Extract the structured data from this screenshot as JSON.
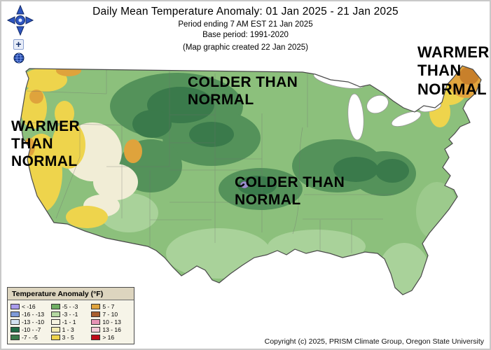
{
  "header": {
    "title": "Daily Mean Temperature Anomaly: 01 Jan 2025 - 21 Jan 2025",
    "period_line": "Period ending 7 AM EST 21 Jan 2025",
    "base_period_line": "Base period: 1991-2020",
    "created_line": "(Map graphic created 22 Jan 2025)"
  },
  "map_controls": {
    "pan_icon": "compass-rose-icon",
    "zoom_in_label": "+",
    "globe_icon": "globe-icon"
  },
  "annotations": [
    {
      "id": "west",
      "text": "WARMER\nTHAN\nNORMAL"
    },
    {
      "id": "north-central",
      "text": "COLDER THAN\nNORMAL"
    },
    {
      "id": "central",
      "text": "COLDER THAN\nNORMAL"
    },
    {
      "id": "northeast",
      "text": "WARMER\nTHAN\nNORMAL"
    }
  ],
  "legend": {
    "title": "Temperature Anomaly (°F)",
    "columns": [
      {
        "items": [
          {
            "range": "< -16",
            "color": "#a99cec"
          },
          {
            "range": "-16 - -13",
            "color": "#7f9bd8"
          },
          {
            "range": "-13 - -10",
            "color": "#d4e2f2"
          },
          {
            "range": "-10 - -7",
            "color": "#1f6b46"
          },
          {
            "range": "-7 - -5",
            "color": "#3a7a4b"
          }
        ]
      },
      {
        "items": [
          {
            "range": "-5 - -3",
            "color": "#6fae62"
          },
          {
            "range": "-3 - -1",
            "color": "#b4d9a2"
          },
          {
            "range": "-1 - 1",
            "color": "#f7f4e1"
          },
          {
            "range": "1 - 3",
            "color": "#f3ecb2"
          },
          {
            "range": "3 - 5",
            "color": "#eed44c"
          }
        ]
      },
      {
        "items": [
          {
            "range": "5 - 7",
            "color": "#dfa33c"
          },
          {
            "range": "7 - 10",
            "color": "#a85e2d"
          },
          {
            "range": "10 - 13",
            "color": "#e693b6"
          },
          {
            "range": "13 - 16",
            "color": "#f6ccd9"
          },
          {
            "range": "> 16",
            "color": "#c00a18"
          }
        ]
      }
    ]
  },
  "footer": {
    "copyright": "Copyright (c) 2025, PRISM Climate Group, Oregon State University"
  }
}
